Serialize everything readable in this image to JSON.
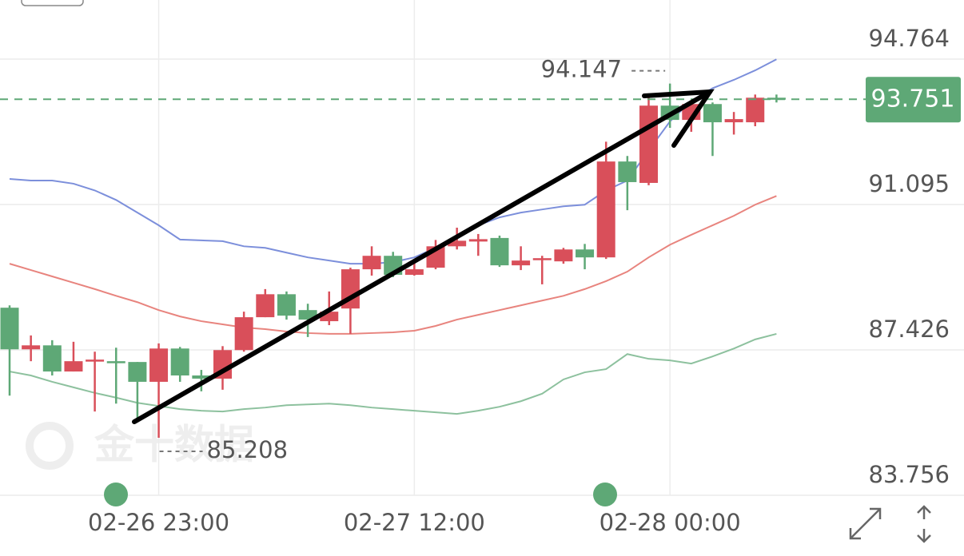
{
  "chart_data": {
    "type": "candlestick",
    "watermark": "金十数据",
    "categories": [
      null,
      null,
      null,
      null,
      null,
      null,
      null,
      "02-26 23:00",
      null,
      null,
      null,
      null,
      null,
      null,
      null,
      null,
      null,
      null,
      null,
      "02-27 12:00",
      null,
      null,
      null,
      null,
      null,
      null,
      null,
      null,
      null,
      null,
      null,
      "02-28 00:00",
      null,
      null,
      null,
      null,
      null
    ],
    "open": [
      88.49,
      87.44,
      87.54,
      86.88,
      87.16,
      87.14,
      87.12,
      86.62,
      87.46,
      86.78,
      86.7,
      87.42,
      88.25,
      88.83,
      88.43,
      88.15,
      88.47,
      89.46,
      89.8,
      89.32,
      89.5,
      90.04,
      90.16,
      90.25,
      89.56,
      89.7,
      89.66,
      89.96,
      89.76,
      92.18,
      91.64,
      93.59,
      93.23,
      93.63,
      93.17,
      93.17,
      93.79
    ],
    "high": [
      88.55,
      87.79,
      87.67,
      87.63,
      87.38,
      87.48,
      87.12,
      87.59,
      87.5,
      86.92,
      87.52,
      88.39,
      88.96,
      88.9,
      88.59,
      88.9,
      89.5,
      90.04,
      89.9,
      89.7,
      90.2,
      90.51,
      90.35,
      90.31,
      90.04,
      89.8,
      90.0,
      90.1,
      92.68,
      92.32,
      93.87,
      94.147,
      93.73,
      93.67,
      93.43,
      93.87,
      93.87
    ],
    "low": [
      86.27,
      87.14,
      86.78,
      86.88,
      85.87,
      86.07,
      85.67,
      85.208,
      86.62,
      86.38,
      86.42,
      87.38,
      88.25,
      88.19,
      87.75,
      88.05,
      87.83,
      89.3,
      89.26,
      89.3,
      89.46,
      89.96,
      89.8,
      89.52,
      89.44,
      89.08,
      89.6,
      89.46,
      89.72,
      90.95,
      91.58,
      93.03,
      92.93,
      92.32,
      92.86,
      93.07,
      93.67
    ],
    "close": [
      87.44,
      87.54,
      86.88,
      87.14,
      87.18,
      87.1,
      86.62,
      87.46,
      86.78,
      86.7,
      87.42,
      88.25,
      88.83,
      88.29,
      88.19,
      88.39,
      89.46,
      89.8,
      89.32,
      89.46,
      90.04,
      90.18,
      90.22,
      89.56,
      89.68,
      89.74,
      89.96,
      89.76,
      92.18,
      91.66,
      93.59,
      93.23,
      93.63,
      93.17,
      93.25,
      93.79,
      93.751
    ],
    "up_color": "#d94f5a",
    "down_color": "#5ea876",
    "lines": [
      {
        "color": "#7c8fdb",
        "values": [
          91.74,
          91.7,
          91.7,
          91.62,
          91.45,
          91.21,
          90.89,
          90.57,
          90.21,
          90.19,
          90.17,
          90.04,
          90.0,
          89.88,
          89.76,
          89.68,
          89.6,
          89.6,
          89.64,
          89.76,
          90.0,
          90.29,
          90.57,
          90.77,
          90.89,
          90.97,
          91.05,
          91.09,
          91.45,
          91.7,
          92.46,
          93.19,
          93.71,
          94.03,
          94.24,
          94.48,
          94.76
        ]
      },
      {
        "color": "#e8847e",
        "values": [
          89.6,
          89.44,
          89.28,
          89.12,
          88.96,
          88.79,
          88.63,
          88.43,
          88.27,
          88.15,
          88.07,
          87.99,
          87.95,
          87.89,
          87.85,
          87.83,
          87.83,
          87.85,
          87.87,
          87.91,
          88.03,
          88.19,
          88.31,
          88.43,
          88.55,
          88.67,
          88.79,
          88.96,
          89.16,
          89.4,
          89.76,
          90.08,
          90.33,
          90.57,
          90.81,
          91.09,
          91.31
        ]
      },
      {
        "color": "#8dc19e",
        "values": [
          86.88,
          86.78,
          86.62,
          86.48,
          86.34,
          86.22,
          86.09,
          86.01,
          85.93,
          85.89,
          85.87,
          85.93,
          85.97,
          86.03,
          86.05,
          86.07,
          86.03,
          85.97,
          85.93,
          85.89,
          85.85,
          85.81,
          85.89,
          85.99,
          86.13,
          86.32,
          86.68,
          86.86,
          86.94,
          87.32,
          87.2,
          87.16,
          87.08,
          87.26,
          87.46,
          87.69,
          87.83
        ]
      }
    ],
    "ylim": [
      83.756,
      96.256
    ],
    "yticks": [
      83.756,
      87.426,
      91.095,
      94.764
    ],
    "grid": true
  }
}
